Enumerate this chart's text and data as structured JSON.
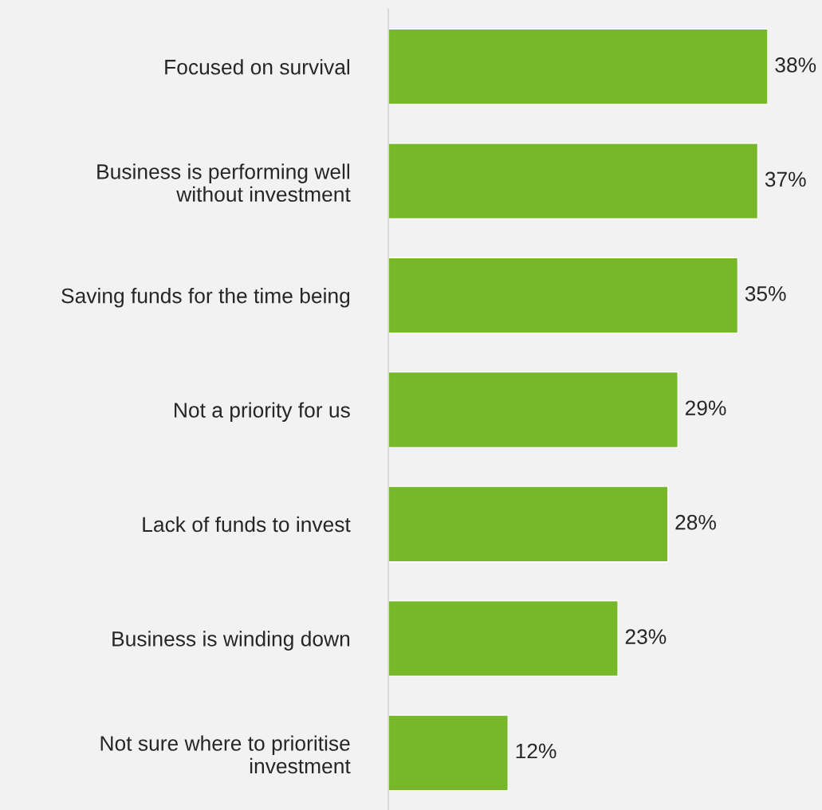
{
  "chart_data": {
    "type": "bar",
    "orientation": "horizontal",
    "categories": [
      "Focused on survival",
      "Business is performing well\nwithout investment",
      "Saving funds for the time being",
      "Not a priority for us",
      "Lack of funds to invest",
      "Business is winding down",
      "Not sure where to prioritise\ninvestment"
    ],
    "values": [
      38,
      37,
      35,
      29,
      28,
      23,
      12
    ],
    "value_labels": [
      "38%",
      "37%",
      "35%",
      "29%",
      "28%",
      "23%",
      "12%"
    ],
    "color": "#76b82a",
    "grid": false,
    "legend": false
  }
}
